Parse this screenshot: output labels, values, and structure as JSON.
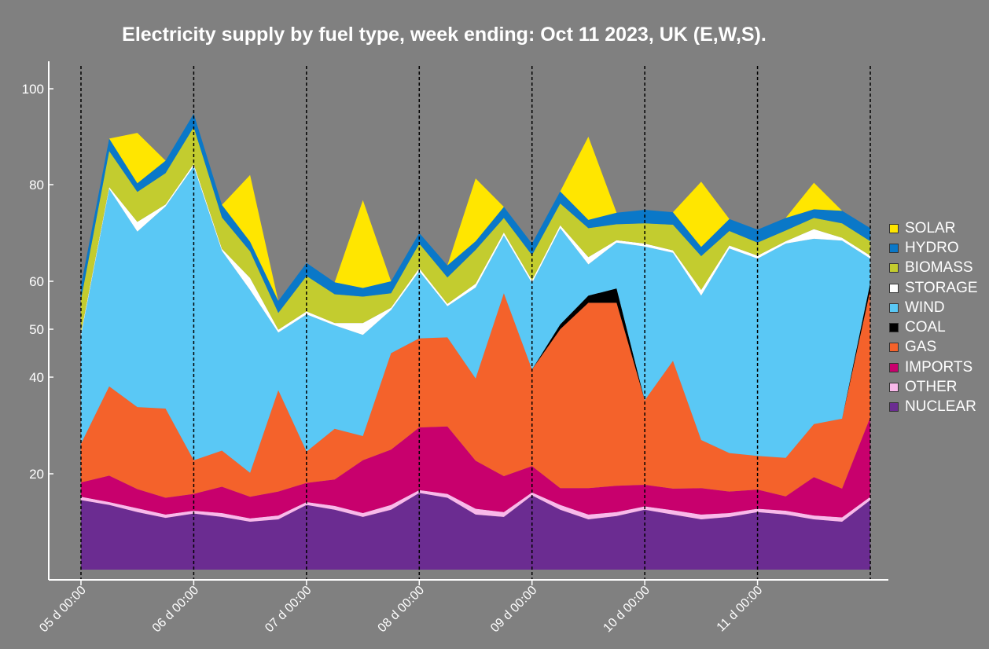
{
  "chart_data": {
    "type": "area",
    "title": "Electricity supply by fuel type, week ending:  Oct 11 2023, UK (E,W,S).",
    "xlabel": "",
    "ylabel": "",
    "y_ticks": [
      "20",
      "40",
      "50",
      "60",
      "80",
      "100"
    ],
    "x_ticks": [
      "05 d 00:00",
      "06 d 00:00",
      "07 d 00:00",
      "08 d 00:00",
      "09 d 00:00",
      "10 d 00:00",
      "11 d 00:00"
    ],
    "legend_position": "right",
    "grid": "vertical dashed lines at day boundaries",
    "x_days": [
      5,
      5.25,
      5.5,
      5.75,
      6,
      6.25,
      6.5,
      6.75,
      7,
      7.25,
      7.5,
      7.75,
      8,
      8.25,
      8.5,
      8.75,
      9,
      9.25,
      9.5,
      9.75,
      10,
      10.25,
      10.5,
      10.75,
      11,
      11.25,
      11.5,
      11.75,
      12
    ],
    "series": [
      {
        "name": "NUCLEAR",
        "color": "#6b2c91",
        "values": [
          14.5,
          13.5,
          12.0,
          10.8,
          11.7,
          11.0,
          10.0,
          10.5,
          13.5,
          12.5,
          11.0,
          12.5,
          16.0,
          15.0,
          11.5,
          11.0,
          15.5,
          12.5,
          10.5,
          11.2,
          12.5,
          11.5,
          10.5,
          11.0,
          12.0,
          11.5,
          10.5,
          10.0,
          14.5
        ]
      },
      {
        "name": "OTHER",
        "color": "#f9b9ea",
        "values": [
          0.7,
          0.6,
          0.8,
          0.7,
          0.6,
          0.8,
          0.7,
          0.8,
          0.6,
          0.8,
          0.8,
          1.0,
          0.6,
          0.8,
          1.2,
          1.0,
          0.6,
          1.0,
          1.0,
          0.8,
          0.7,
          0.9,
          1.0,
          0.8,
          0.7,
          0.8,
          0.8,
          0.9,
          0.7
        ]
      },
      {
        "name": "IMPORTS",
        "color": "#c8006d",
        "values": [
          3.0,
          5.5,
          4.0,
          3.5,
          3.5,
          5.5,
          4.5,
          5.0,
          4.0,
          5.5,
          11.0,
          11.5,
          13.0,
          14.0,
          10.0,
          7.5,
          5.5,
          3.5,
          5.5,
          5.5,
          4.5,
          4.5,
          5.5,
          4.5,
          4.0,
          3.0,
          8.0,
          6.0,
          16.5
        ]
      },
      {
        "name": "GAS",
        "color": "#f4622b",
        "values": [
          8.0,
          18.5,
          17.0,
          18.5,
          7.0,
          7.5,
          5.0,
          21.0,
          6.5,
          10.5,
          5.0,
          20.0,
          18.5,
          18.5,
          17.0,
          38.0,
          20.0,
          33.0,
          38.5,
          38.0,
          17.5,
          26.5,
          10.0,
          8.0,
          7.0,
          8.0,
          11.0,
          14.5,
          26.5
        ]
      },
      {
        "name": "COAL",
        "color": "#000000",
        "values": [
          0,
          0,
          0,
          0,
          0,
          0,
          0,
          0,
          0,
          0,
          0,
          0,
          0,
          0,
          0,
          0,
          0,
          1.0,
          1.5,
          3.0,
          0,
          0,
          0,
          0,
          0,
          0,
          0,
          0,
          1.5
        ]
      },
      {
        "name": "WIND",
        "color": "#5ac8f5",
        "values": [
          22.5,
          41.0,
          36.5,
          42.0,
          61.0,
          41.5,
          38.0,
          12.0,
          28.5,
          21.5,
          21.0,
          9.0,
          14.0,
          6.5,
          19.0,
          12.0,
          18.0,
          20.0,
          6.5,
          9.5,
          32.0,
          22.5,
          30.0,
          42.5,
          41.0,
          44.5,
          38.5,
          37.0,
          5.0
        ]
      },
      {
        "name": "STORAGE",
        "color": "#ffffff",
        "values": [
          0.5,
          0.4,
          2.0,
          0.4,
          0.5,
          0.4,
          2.5,
          0.6,
          0.6,
          0.5,
          2.5,
          0.5,
          0.6,
          0.5,
          0.8,
          0.6,
          0.6,
          0.6,
          1.5,
          0.5,
          0.6,
          0.5,
          1.2,
          0.6,
          0.6,
          0.5,
          2.0,
          0.6,
          0.6
        ]
      },
      {
        "name": "BIOMASS",
        "color": "#c3cc2f",
        "values": [
          7.0,
          7.5,
          6.2,
          6.5,
          7.7,
          6.5,
          5.5,
          3.5,
          7.4,
          6.0,
          5.5,
          3.0,
          5.1,
          5.5,
          7.0,
          3.0,
          5.2,
          4.5,
          6.0,
          3.3,
          4.2,
          5.3,
          7.0,
          3.0,
          2.7,
          2.2,
          2.3,
          3.0,
          3.0
        ]
      },
      {
        "name": "HYDRO",
        "color": "#0a78c8",
        "values": [
          2.8,
          2.6,
          1.8,
          2.6,
          2.8,
          2.6,
          2.0,
          2.5,
          2.7,
          2.5,
          1.8,
          2.5,
          2.2,
          2.5,
          1.8,
          2.3,
          2.4,
          2.5,
          1.7,
          2.4,
          2.8,
          2.6,
          1.9,
          2.5,
          2.7,
          2.6,
          1.8,
          2.6,
          2.7
        ]
      },
      {
        "name": "SOLAR",
        "color": "#ffe600",
        "values": [
          0,
          0,
          10.5,
          0,
          0,
          0,
          13.8,
          0,
          0,
          0,
          18.2,
          0,
          0,
          0,
          13.0,
          0,
          0,
          0,
          17.3,
          0,
          0,
          0,
          13.5,
          0,
          0,
          0,
          5.5,
          0,
          0
        ]
      }
    ],
    "legend": [
      "SOLAR",
      "HYDRO",
      "BIOMASS",
      "STORAGE",
      "WIND",
      "COAL",
      "GAS",
      "IMPORTS",
      "OTHER",
      "NUCLEAR"
    ]
  }
}
